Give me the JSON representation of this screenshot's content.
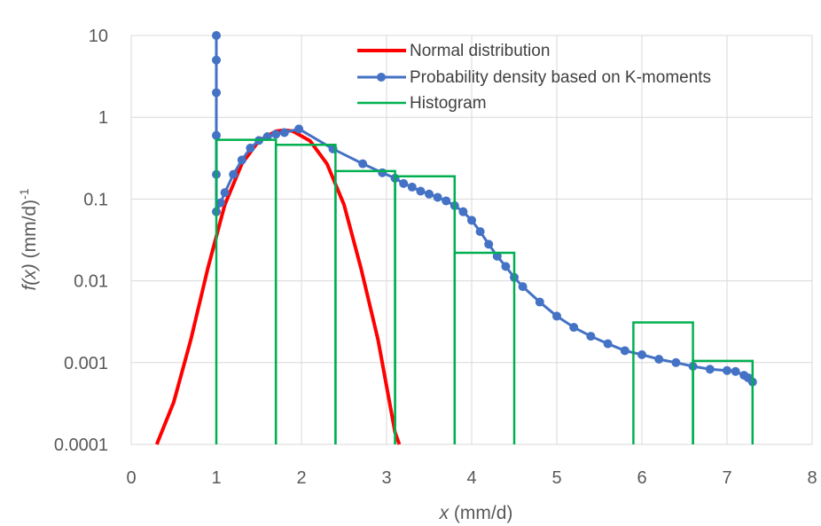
{
  "chart_data": {
    "type": "line",
    "title": "",
    "xlabel": {
      "var": "x",
      "unit": " (mm/d)"
    },
    "ylabel": {
      "var": "f(x)",
      "unit": " (mm/d)",
      "exp": "-1"
    },
    "xlim": [
      0,
      8
    ],
    "ylim": [
      0.0001,
      10
    ],
    "yscale": "log",
    "grid": true,
    "legend_position": "top-right",
    "x_ticks": [
      "0",
      "1",
      "2",
      "3",
      "4",
      "5",
      "6",
      "7",
      "8"
    ],
    "y_ticks": [
      "0.0001",
      "0.001",
      "0.01",
      "0.1",
      "1",
      "10"
    ],
    "series": [
      {
        "name": "Normal distribution",
        "style": "line",
        "color": "#ff0000",
        "x": [
          0.3,
          0.5,
          0.7,
          0.9,
          1.1,
          1.3,
          1.5,
          1.7,
          1.8,
          1.9,
          2.1,
          2.3,
          2.5,
          2.7,
          2.9,
          3.1,
          3.15
        ],
        "y": [
          0.0001,
          0.00033,
          0.0019,
          0.0142,
          0.0855,
          0.2699,
          0.5157,
          0.6755,
          0.6965,
          0.6755,
          0.5157,
          0.2699,
          0.0855,
          0.0142,
          0.0019,
          0.00014,
          0.0001
        ]
      },
      {
        "name": "Probability density based on K-moments",
        "style": "line-markers",
        "color": "#4472c4",
        "x": [
          1.0,
          1.0,
          1.0,
          1.0,
          1.0,
          1.0,
          1.05,
          1.1,
          1.2,
          1.3,
          1.4,
          1.5,
          1.6,
          1.7,
          1.8,
          1.97,
          2.37,
          2.72,
          2.95,
          3.1,
          3.2,
          3.3,
          3.4,
          3.5,
          3.6,
          3.7,
          3.8,
          3.9,
          4.0,
          4.1,
          4.2,
          4.3,
          4.4,
          4.5,
          4.6,
          4.8,
          5.0,
          5.2,
          5.4,
          5.6,
          5.8,
          6.0,
          6.2,
          6.4,
          6.6,
          6.8,
          7.0,
          7.1,
          7.2,
          7.25,
          7.3
        ],
        "y": [
          10,
          5,
          2,
          0.6,
          0.2,
          0.07,
          0.09,
          0.12,
          0.2,
          0.3,
          0.42,
          0.52,
          0.58,
          0.62,
          0.65,
          0.72,
          0.41,
          0.27,
          0.21,
          0.18,
          0.155,
          0.14,
          0.125,
          0.115,
          0.105,
          0.095,
          0.083,
          0.07,
          0.055,
          0.04,
          0.028,
          0.02,
          0.015,
          0.011,
          0.0085,
          0.0055,
          0.0037,
          0.0027,
          0.0021,
          0.0017,
          0.0014,
          0.00125,
          0.0011,
          0.001,
          0.0009,
          0.00083,
          0.0008,
          0.00078,
          0.0007,
          0.00065,
          0.00058
        ]
      },
      {
        "name": "Histogram",
        "style": "step",
        "color": "#00b050",
        "bins": [
          {
            "x0": 1.0,
            "x1": 1.7,
            "y": 0.53
          },
          {
            "x0": 1.7,
            "x1": 2.4,
            "y": 0.46
          },
          {
            "x0": 2.4,
            "x1": 3.1,
            "y": 0.22
          },
          {
            "x0": 3.1,
            "x1": 3.8,
            "y": 0.19
          },
          {
            "x0": 3.8,
            "x1": 4.5,
            "y": 0.022
          },
          {
            "x0": 4.5,
            "x1": 5.9,
            "y": 0
          },
          {
            "x0": 5.9,
            "x1": 6.6,
            "y": 0.0031
          },
          {
            "x0": 6.6,
            "x1": 7.3,
            "y": 0.00105
          }
        ]
      }
    ]
  }
}
